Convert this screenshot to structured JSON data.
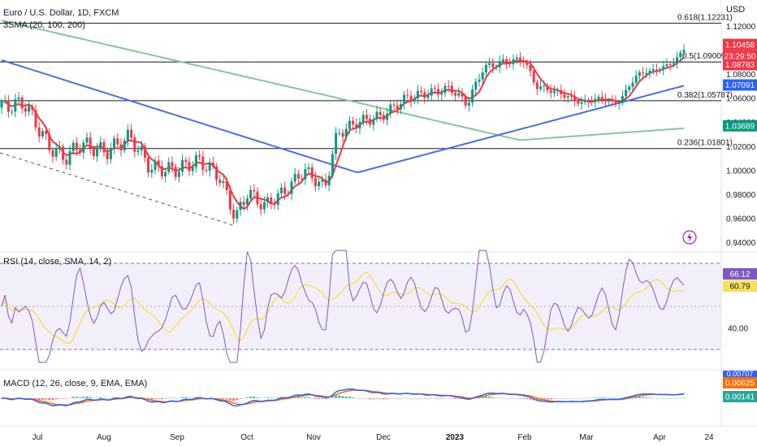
{
  "chart_data": {
    "type": "candlestick",
    "title": "Euro / U.S. Dollar, 1D, FXCM",
    "currency": "USD",
    "indicator_label": "3SMA (20, 100, 200)",
    "price_ticks": [
      "1.12000",
      "1.10000",
      "1.08000",
      "1.06000",
      "1.04000",
      "1.02000",
      "1.00000",
      "0.98000",
      "0.96000",
      "0.94000"
    ],
    "x_ticks": [
      "Jul",
      "Aug",
      "Sep",
      "Oct",
      "Nov",
      "Dec",
      "2023",
      "Feb",
      "Mar",
      "Apr",
      "24"
    ],
    "fib_levels": [
      {
        "label": "0.618(1.12231)",
        "value": 1.12231
      },
      {
        "label": "0.5(1.09009)",
        "value": 1.09009
      },
      {
        "label": "0.382(1.05787)",
        "value": 1.05787
      },
      {
        "label": "0.236(1.01801)",
        "value": 1.01801
      }
    ],
    "price_badges": [
      {
        "text": "1.10458",
        "color": "#f23645"
      },
      {
        "text": "23:29:50",
        "color": "#f23645"
      },
      {
        "text": "1.08783",
        "color": "#f23645"
      },
      {
        "text": "1.07091",
        "color": "#2962ff"
      },
      {
        "text": "1.03689",
        "color": "#089981"
      }
    ],
    "sma_colors": {
      "sma20": "#f23645",
      "sma100": "#4c6fd8",
      "sma200": "#81c995"
    },
    "candle_colors": {
      "up": "#089981",
      "down": "#f23645"
    },
    "rsi": {
      "label": "RSI (14, close, SMA, 14, 2)",
      "axis_tick": "40.00",
      "rsi_value": "66.12",
      "sma_value": "60.79",
      "upper_band": 70,
      "lower_band": 30,
      "colors": {
        "rsi": "#7e57c2",
        "sma": "#f7e15a",
        "band_bg": "#ede7f6"
      }
    },
    "macd": {
      "label": "MACD (12, 26, close, 9, EMA, EMA)",
      "top_tick": "0.00707",
      "macd_value": "0.00625",
      "hist_value": "0.00141",
      "colors": {
        "macd": "#2962ff",
        "signal": "#ff6d00",
        "hist_pos": "#26a69a",
        "hist_neg": "#ef5350"
      }
    },
    "monthly_close": [
      {
        "month": "Jul",
        "value": 1.02
      },
      {
        "month": "Aug",
        "value": 1.005
      },
      {
        "month": "Sep",
        "value": 0.98
      },
      {
        "month": "Oct",
        "value": 0.988
      },
      {
        "month": "Nov",
        "value": 1.035
      },
      {
        "month": "Dec",
        "value": 1.07
      },
      {
        "month": "2023",
        "value": 1.086
      },
      {
        "month": "Feb",
        "value": 1.058
      },
      {
        "month": "Mar",
        "value": 1.084
      },
      {
        "month": "Apr",
        "value": 1.1046
      }
    ]
  }
}
